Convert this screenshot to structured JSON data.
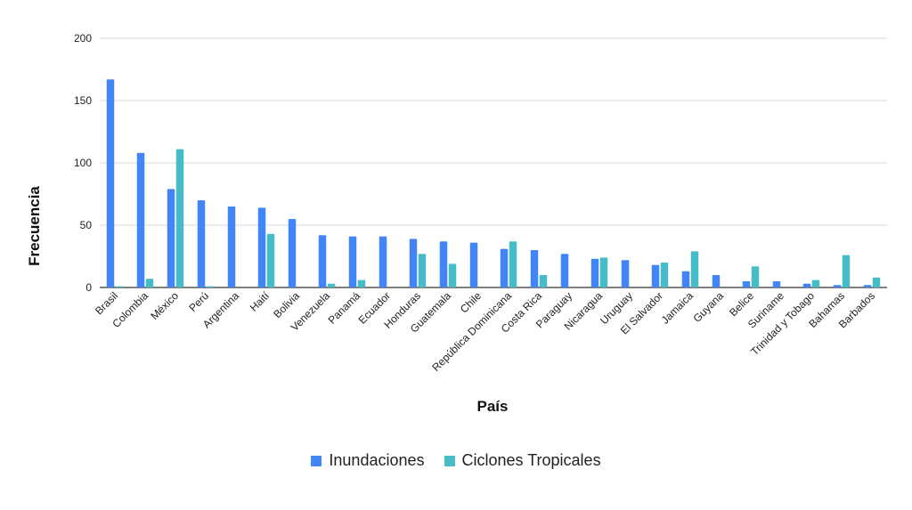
{
  "chart_data": {
    "type": "bar",
    "title": "",
    "xlabel": "País",
    "ylabel": "Frecuencia",
    "ylim": [
      0,
      200
    ],
    "yticks": [
      0,
      50,
      100,
      150,
      200
    ],
    "grid": true,
    "legend_position": "bottom",
    "categories": [
      "Brasil",
      "Colombia",
      "México",
      "Perú",
      "Argentina",
      "Haití",
      "Bolivia",
      "Venezuela",
      "Panamá",
      "Ecuador",
      "Honduras",
      "Guatemala",
      "Chile",
      "República Dominicana",
      "Costa Rica",
      "Paraguay",
      "Nicaragua",
      "Uruguay",
      "El Salvador",
      "Jamaica",
      "Guyana",
      "Belice",
      "Suriname",
      "Trinidad y Tobago",
      "Bahamas",
      "Barbados"
    ],
    "series": [
      {
        "name": "Inundaciones",
        "color": "#4285f4",
        "values": [
          167,
          108,
          79,
          70,
          65,
          64,
          55,
          42,
          41,
          41,
          39,
          37,
          36,
          31,
          30,
          27,
          23,
          22,
          18,
          13,
          10,
          5,
          5,
          3,
          2,
          2
        ]
      },
      {
        "name": "Ciclones Tropicales",
        "color": "#46bdc6",
        "values": [
          1,
          7,
          111,
          1,
          0,
          43,
          0,
          3,
          6,
          0,
          27,
          19,
          0,
          37,
          10,
          0,
          24,
          0,
          20,
          29,
          0,
          17,
          0,
          6,
          26,
          8
        ]
      }
    ]
  }
}
